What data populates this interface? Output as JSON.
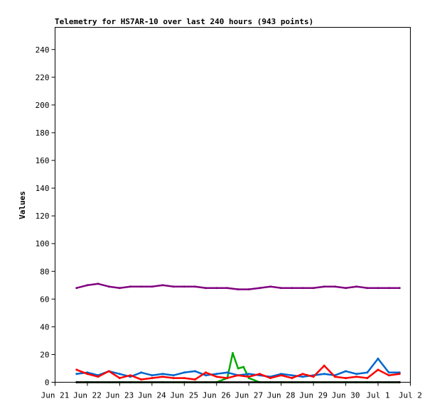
{
  "chart_data": {
    "type": "line",
    "title": "Telemetry for HS7AR-10 over last 240 hours (943 points)",
    "xlabel": "",
    "ylabel": "Values",
    "ylim": [
      0,
      256
    ],
    "y_ticks": [
      0,
      20,
      40,
      60,
      80,
      100,
      120,
      140,
      160,
      180,
      200,
      220,
      240
    ],
    "x_range_days": [
      "Jun 21",
      "Jul 2"
    ],
    "x_tick_labels": [
      "Jun 21",
      "Jun 22",
      "Jun 23",
      "Jun 24",
      "Jun 25",
      "Jun 26",
      "Jun 27",
      "Jun 28",
      "Jun 29",
      "Jun 30",
      "Jul 1",
      "Jul 2"
    ],
    "grid": false,
    "legend": "none",
    "data_start": "Jun 21 16:00",
    "data_end": "Jul 1 16:00",
    "series": [
      {
        "color": "#800080",
        "x": [
          "Jun 21 16:00",
          "Jun 22 00:00",
          "Jun 22 08:00",
          "Jun 22 16:00",
          "Jun 23 00:00",
          "Jun 23 08:00",
          "Jun 23 16:00",
          "Jun 24 00:00",
          "Jun 24 08:00",
          "Jun 24 16:00",
          "Jun 25 00:00",
          "Jun 25 08:00",
          "Jun 25 16:00",
          "Jun 26 00:00",
          "Jun 26 08:00",
          "Jun 26 16:00",
          "Jun 27 00:00",
          "Jun 27 08:00",
          "Jun 27 16:00",
          "Jun 28 00:00",
          "Jun 28 08:00",
          "Jun 28 16:00",
          "Jun 29 00:00",
          "Jun 29 08:00",
          "Jun 29 16:00",
          "Jun 30 00:00",
          "Jun 30 08:00",
          "Jun 30 16:00",
          "Jul 1 00:00",
          "Jul 1 08:00",
          "Jul 1 16:00"
        ],
        "values": [
          68,
          70,
          71,
          69,
          68,
          69,
          69,
          69,
          70,
          69,
          69,
          69,
          68,
          68,
          68,
          67,
          67,
          68,
          69,
          68,
          68,
          68,
          68,
          69,
          69,
          68,
          69,
          68,
          68,
          68,
          68
        ]
      },
      {
        "color": "#0066cc",
        "x": [
          "Jun 21 16:00",
          "Jun 22 00:00",
          "Jun 22 08:00",
          "Jun 22 16:00",
          "Jun 23 00:00",
          "Jun 23 08:00",
          "Jun 23 16:00",
          "Jun 24 00:00",
          "Jun 24 08:00",
          "Jun 24 16:00",
          "Jun 25 00:00",
          "Jun 25 08:00",
          "Jun 25 16:00",
          "Jun 26 00:00",
          "Jun 26 08:00",
          "Jun 26 16:00",
          "Jun 27 00:00",
          "Jun 27 08:00",
          "Jun 27 16:00",
          "Jun 28 00:00",
          "Jun 28 08:00",
          "Jun 28 16:00",
          "Jun 29 00:00",
          "Jun 29 08:00",
          "Jun 29 16:00",
          "Jun 30 00:00",
          "Jun 30 08:00",
          "Jun 30 16:00",
          "Jul 1 00:00",
          "Jul 1 08:00",
          "Jul 1 16:00"
        ],
        "values": [
          6,
          7,
          5,
          8,
          6,
          4,
          7,
          5,
          6,
          5,
          7,
          8,
          5,
          6,
          7,
          5,
          6,
          5,
          4,
          6,
          5,
          4,
          5,
          6,
          5,
          8,
          6,
          7,
          17,
          7,
          7
        ]
      },
      {
        "color": "#ff0000",
        "x": [
          "Jun 21 16:00",
          "Jun 22 00:00",
          "Jun 22 08:00",
          "Jun 22 16:00",
          "Jun 23 00:00",
          "Jun 23 08:00",
          "Jun 23 16:00",
          "Jun 24 00:00",
          "Jun 24 08:00",
          "Jun 24 16:00",
          "Jun 25 00:00",
          "Jun 25 08:00",
          "Jun 25 16:00",
          "Jun 26 00:00",
          "Jun 26 08:00",
          "Jun 26 16:00",
          "Jun 27 00:00",
          "Jun 27 08:00",
          "Jun 27 16:00",
          "Jun 28 00:00",
          "Jun 28 08:00",
          "Jun 28 16:00",
          "Jun 29 00:00",
          "Jun 29 08:00",
          "Jun 29 16:00",
          "Jun 30 00:00",
          "Jun 30 08:00",
          "Jun 30 16:00",
          "Jul 1 00:00",
          "Jul 1 08:00",
          "Jul 1 16:00"
        ],
        "values": [
          9,
          6,
          4,
          8,
          3,
          5,
          2,
          3,
          4,
          3,
          3,
          2,
          7,
          4,
          3,
          5,
          4,
          6,
          3,
          5,
          3,
          6,
          4,
          12,
          4,
          3,
          4,
          3,
          9,
          5,
          6
        ]
      },
      {
        "color": "#00aa00",
        "x": [
          "Jun 21 16:00",
          "Jun 22 00:00",
          "Jun 22 08:00",
          "Jun 22 16:00",
          "Jun 23 00:00",
          "Jun 23 08:00",
          "Jun 23 16:00",
          "Jun 24 00:00",
          "Jun 24 08:00",
          "Jun 24 16:00",
          "Jun 25 00:00",
          "Jun 25 08:00",
          "Jun 25 16:00",
          "Jun 26 00:00",
          "Jun 26 08:00",
          "Jun 26 12:00",
          "Jun 26 16:00",
          "Jun 26 20:00",
          "Jun 27 00:00",
          "Jun 27 08:00",
          "Jun 27 16:00",
          "Jun 28 00:00",
          "Jun 28 08:00",
          "Jun 28 16:00",
          "Jun 29 00:00",
          "Jun 29 08:00",
          "Jun 29 16:00",
          "Jun 30 00:00",
          "Jun 30 08:00",
          "Jun 30 16:00",
          "Jul 1 00:00",
          "Jul 1 08:00",
          "Jul 1 16:00"
        ],
        "values": [
          0,
          0,
          0,
          0,
          0,
          0,
          0,
          0,
          0,
          0,
          0,
          0,
          0,
          0,
          3,
          21,
          10,
          11,
          3,
          0,
          0,
          0,
          0,
          0,
          0,
          0,
          0,
          0,
          0,
          0,
          0,
          0,
          0
        ]
      },
      {
        "color": "#000000",
        "x": [
          "Jun 21 16:00",
          "Jul 1 16:00"
        ],
        "values": [
          0,
          0
        ]
      }
    ]
  }
}
